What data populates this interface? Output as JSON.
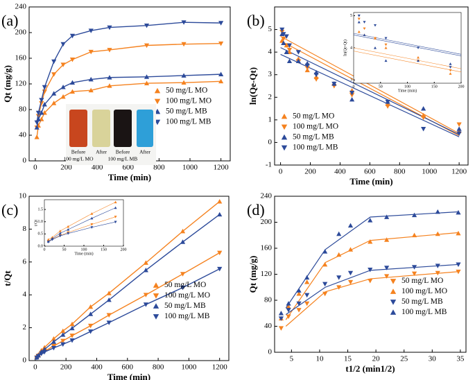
{
  "chart_data": [
    {
      "type": "line",
      "label": "(a)",
      "x_label": "Time (min)",
      "y_label": "Qt (mg/g)",
      "xlim": [
        -40,
        1260
      ],
      "xticks": [
        0,
        200,
        400,
        600,
        800,
        1000,
        1200
      ],
      "ylim": [
        0,
        240
      ],
      "yticks": [
        0,
        40,
        80,
        120,
        160,
        200,
        240
      ],
      "legend": "center-right",
      "x": [
        10,
        20,
        40,
        60,
        120,
        180,
        240,
        360,
        480,
        720,
        960,
        1200
      ],
      "series": [
        {
          "name": "50 mg/L MO",
          "color": "#f5821f",
          "marker": "up",
          "values": [
            37,
            55,
            65,
            75,
            90,
            100,
            108,
            110,
            117,
            121,
            122,
            124
          ]
        },
        {
          "name": "100 mg/L MO",
          "color": "#f5821f",
          "marker": "down",
          "values": [
            52,
            70,
            90,
            108,
            135,
            150,
            158,
            170,
            173,
            180,
            182,
            183
          ]
        },
        {
          "name": "50 mg/L MB",
          "color": "#2c4a9a",
          "marker": "up",
          "values": [
            52,
            65,
            75,
            88,
            105,
            115,
            122,
            127,
            130,
            131,
            133,
            135
          ]
        },
        {
          "name": "100 mg/L MB",
          "color": "#2c4a9a",
          "marker": "down",
          "values": [
            60,
            75,
            95,
            115,
            155,
            182,
            195,
            203,
            208,
            211,
            216,
            215
          ]
        }
      ],
      "annotations": [
        "Before",
        "After",
        "100 mg/L MO",
        "Before",
        "After",
        "100 mg/L MB"
      ]
    },
    {
      "type": "scatter",
      "label": "(b)",
      "x_label": "Time (min)",
      "y_label": "ln(Qe-Qt)",
      "xlim": [
        -40,
        1260
      ],
      "xticks": [
        0,
        200,
        400,
        600,
        800,
        1000,
        1200
      ],
      "ylim": [
        -1,
        6
      ],
      "yticks": [
        -1,
        0,
        1,
        2,
        3,
        4,
        5
      ],
      "legend": "bottom-left",
      "x": [
        10,
        20,
        40,
        60,
        120,
        180,
        240,
        360,
        480,
        720,
        960,
        1200
      ],
      "series": [
        {
          "name": "50 mg/L MO",
          "color": "#f5821f",
          "marker": "up",
          "values": [
            4.5,
            4.4,
            4.3,
            4.0,
            3.7,
            3.2,
            2.9,
            2.6,
            2.3,
            1.7,
            1.2,
            0.5
          ]
        },
        {
          "name": "100 mg/L MO",
          "color": "#f5821f",
          "marker": "down",
          "values": [
            4.9,
            4.6,
            4.3,
            4.1,
            3.6,
            3.3,
            2.8,
            2.5,
            2.1,
            1.6,
            1.1,
            0.8
          ]
        },
        {
          "name": "50 mg/L MB",
          "color": "#2c4a9a",
          "marker": "up",
          "values": [
            4.8,
            4.4,
            4.0,
            3.6,
            3.6,
            3.5,
            3.1,
            2.6,
            1.9,
            1.8,
            1.5,
            0.6
          ]
        },
        {
          "name": "100 mg/L MB",
          "color": "#2c4a9a",
          "marker": "down",
          "values": [
            5.0,
            4.8,
            4.7,
            4.3,
            4.0,
            3.4,
            3.0,
            2.6,
            2.2,
            1.8,
            0.6,
            0.4
          ]
        }
      ],
      "fit_lines": [
        {
          "color": "#f5821f",
          "x": [
            0,
            1200
          ],
          "values": [
            4.5,
            0.3
          ]
        },
        {
          "color": "#f5821f",
          "x": [
            0,
            1200
          ],
          "values": [
            4.7,
            0.4
          ]
        },
        {
          "color": "#2c4a9a",
          "x": [
            0,
            1200
          ],
          "values": [
            3.9,
            0.25
          ]
        },
        {
          "color": "#2c4a9a",
          "x": [
            0,
            1200
          ],
          "values": [
            4.2,
            0.35
          ]
        }
      ],
      "inset": {
        "type": "scatter",
        "x_label": "Time (min)",
        "y_label": "ln(Qe-Qt)",
        "xlim": [
          0,
          200
        ],
        "xticks": [
          0,
          50,
          100,
          150,
          200
        ],
        "ylim": [
          2.9,
          5.1
        ],
        "yticks": [
          3,
          4,
          5
        ],
        "x": [
          10,
          20,
          40,
          60,
          120,
          180
        ],
        "series": [
          {
            "color": "#f5821f",
            "marker": "up",
            "values": [
              4.5,
              4.4,
              4.3,
              4.0,
              3.7,
              3.2
            ]
          },
          {
            "color": "#f5821f",
            "marker": "down",
            "values": [
              4.9,
              4.6,
              4.3,
              4.1,
              3.6,
              3.3
            ]
          },
          {
            "color": "#2c4a9a",
            "marker": "up",
            "values": [
              4.8,
              4.4,
              4.0,
              3.6,
              3.6,
              3.5
            ]
          },
          {
            "color": "#2c4a9a",
            "marker": "down",
            "values": [
              5.0,
              4.8,
              4.7,
              4.3,
              4.0,
              3.4
            ]
          }
        ],
        "fit_lines": [
          {
            "color": "#f5821f",
            "x": [
              0,
              200
            ],
            "values": [
              3.9,
              3.25
            ]
          },
          {
            "color": "#f5821f",
            "x": [
              0,
              200
            ],
            "values": [
              4.0,
              3.35
            ]
          },
          {
            "color": "#2c4a9a",
            "x": [
              0,
              200
            ],
            "values": [
              4.4,
              3.75
            ]
          },
          {
            "color": "#2c4a9a",
            "x": [
              0,
              200
            ],
            "values": [
              4.45,
              3.8
            ]
          }
        ]
      }
    },
    {
      "type": "line",
      "label": "(c)",
      "x_label": "Time (min)",
      "y_label": "t/Qt",
      "xlim": [
        -40,
        1260
      ],
      "xticks": [
        0,
        200,
        400,
        600,
        800,
        1000,
        1200
      ],
      "ylim": [
        0,
        10
      ],
      "yticks": [
        0,
        2,
        4,
        6,
        8,
        10
      ],
      "legend": "center-right",
      "x": [
        10,
        20,
        40,
        60,
        120,
        180,
        240,
        360,
        480,
        720,
        960,
        1200
      ],
      "series": [
        {
          "name": "50 mg/L MO",
          "color": "#f5821f",
          "marker": "up",
          "values": [
            0.27,
            0.36,
            0.62,
            0.8,
            1.33,
            1.8,
            2.22,
            3.27,
            4.1,
            5.95,
            7.87,
            9.68
          ]
        },
        {
          "name": "100 mg/L MO",
          "color": "#f5821f",
          "marker": "down",
          "values": [
            0.19,
            0.29,
            0.44,
            0.56,
            0.89,
            1.2,
            1.52,
            2.12,
            2.77,
            4.0,
            5.27,
            6.56
          ]
        },
        {
          "name": "50 mg/L MB",
          "color": "#2c4a9a",
          "marker": "up",
          "values": [
            0.19,
            0.31,
            0.53,
            0.68,
            1.14,
            1.57,
            1.97,
            2.83,
            3.69,
            5.5,
            7.22,
            8.89
          ]
        },
        {
          "name": "100 mg/L MB",
          "color": "#2c4a9a",
          "marker": "down",
          "values": [
            0.17,
            0.27,
            0.42,
            0.52,
            0.77,
            0.99,
            1.23,
            1.77,
            2.31,
            3.41,
            4.44,
            5.58
          ]
        }
      ],
      "inset": {
        "type": "line",
        "x_label": "Time (min)",
        "y_label": "t/Qt",
        "xlim": [
          0,
          200
        ],
        "xticks": [
          0,
          50,
          100,
          150,
          200
        ],
        "ylim": [
          0,
          1.9
        ],
        "yticks": [
          {
            "value": 0,
            "label": "0.0"
          },
          0.5,
          {
            "value": 1,
            "label": "1.0"
          },
          1.5
        ],
        "x": [
          10,
          20,
          40,
          60,
          120,
          180
        ],
        "series": [
          {
            "color": "#f5821f",
            "marker": "up",
            "values": [
              0.27,
              0.36,
              0.62,
              0.8,
              1.33,
              1.8
            ]
          },
          {
            "color": "#f5821f",
            "marker": "down",
            "values": [
              0.19,
              0.29,
              0.44,
              0.56,
              0.89,
              1.2
            ]
          },
          {
            "color": "#2c4a9a",
            "marker": "up",
            "values": [
              0.19,
              0.31,
              0.53,
              0.68,
              1.14,
              1.57
            ]
          },
          {
            "color": "#2c4a9a",
            "marker": "down",
            "values": [
              0.17,
              0.27,
              0.42,
              0.52,
              0.77,
              0.99
            ]
          }
        ]
      }
    },
    {
      "type": "scatter",
      "label": "(d)",
      "x_label": "t1/2 (min1/2)",
      "y_label": "Qt (mg/g)",
      "xlim": [
        2,
        36
      ],
      "xticks": [
        5,
        10,
        15,
        20,
        25,
        30,
        35
      ],
      "ylim": [
        0,
        240
      ],
      "yticks": [
        0,
        40,
        80,
        120,
        160,
        200,
        240
      ],
      "legend": "center-right",
      "x": [
        3.16,
        4.47,
        6.32,
        7.75,
        10.95,
        13.42,
        15.49,
        18.97,
        21.91,
        26.83,
        30.98,
        34.64
      ],
      "series": [
        {
          "name": "50 mg/L MO",
          "color": "#f5821f",
          "marker": "down",
          "values": [
            37,
            55,
            65,
            75,
            90,
            100,
            108,
            110,
            117,
            121,
            122,
            124
          ]
        },
        {
          "name": "100 mg/L MO",
          "color": "#f5821f",
          "marker": "up",
          "values": [
            52,
            70,
            90,
            108,
            135,
            150,
            158,
            170,
            173,
            180,
            182,
            183
          ]
        },
        {
          "name": "50 mg/L MB",
          "color": "#2c4a9a",
          "marker": "down",
          "values": [
            52,
            65,
            75,
            88,
            105,
            115,
            122,
            127,
            130,
            131,
            133,
            135
          ]
        },
        {
          "name": "100 mg/L MB",
          "color": "#2c4a9a",
          "marker": "up",
          "values": [
            60,
            75,
            95,
            115,
            155,
            182,
            195,
            203,
            208,
            211,
            216,
            215
          ]
        }
      ],
      "fit_lines": [
        {
          "color": "#f5821f",
          "x": [
            4,
            11,
            19,
            34.6
          ],
          "values": [
            40,
            93,
            113,
            124
          ]
        },
        {
          "color": "#f5821f",
          "x": [
            4,
            11,
            19,
            34.6
          ],
          "values": [
            50,
            138,
            172,
            184
          ]
        },
        {
          "color": "#2c4a9a",
          "x": [
            4,
            11,
            19,
            34.6
          ],
          "values": [
            58,
            100,
            126,
            135
          ]
        },
        {
          "color": "#2c4a9a",
          "x": [
            4,
            11,
            19,
            34.6
          ],
          "values": [
            68,
            158,
            208,
            216
          ]
        }
      ]
    }
  ]
}
